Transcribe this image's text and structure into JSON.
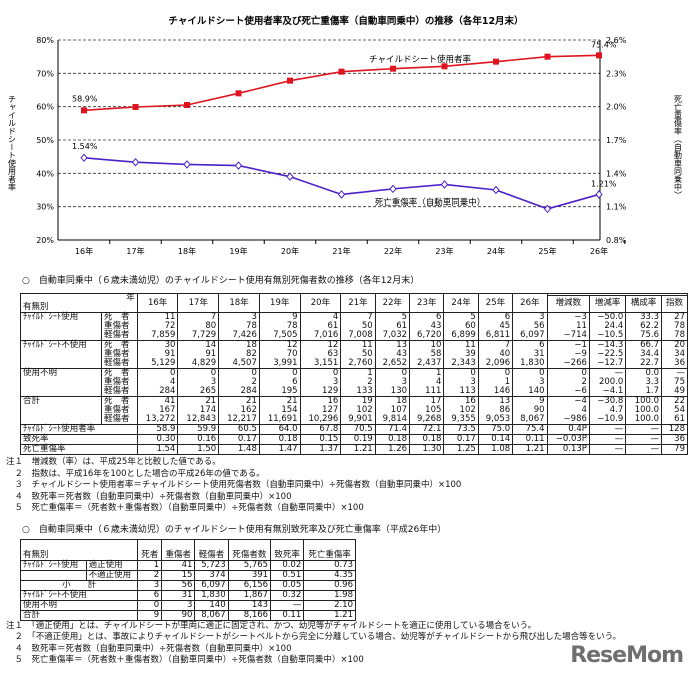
{
  "chart_data": {
    "type": "line",
    "title": "チャイルドシート使用者率及び死亡重傷率（自動車同乗中）の推移（各年12月末）",
    "categories": [
      "16年",
      "17年",
      "18年",
      "19年",
      "20年",
      "21年",
      "22年",
      "23年",
      "24年",
      "25年",
      "26年"
    ],
    "ylabel_left": "チャイルドシート使用者率",
    "ylabel_right": "死亡重傷率（自動車同乗中）",
    "ylim_left": [
      20,
      80
    ],
    "yticks_left": [
      "20%",
      "30%",
      "40%",
      "50%",
      "60%",
      "70%",
      "80%"
    ],
    "ylim_right": [
      0.8,
      2.6
    ],
    "yticks_right": [
      "0.8%",
      "1.1%",
      "1.4%",
      "1.7%",
      "2.0%",
      "2.3%",
      "2.6%"
    ],
    "grid": "horizontal dashed",
    "series": [
      {
        "name": "チャイルドシート使用者率",
        "axis": "left",
        "color": "#e0141e",
        "marker": "square",
        "values": [
          58.9,
          59.9,
          60.5,
          64.0,
          67.8,
          70.5,
          71.4,
          72.1,
          73.5,
          75.0,
          75.4
        ],
        "labels": [
          "58.9%",
          "75.4%"
        ]
      },
      {
        "name": "死亡重傷率（自動車同乗中）",
        "axis": "right",
        "color": "#4a22c8",
        "marker": "diamond",
        "values": [
          1.54,
          1.5,
          1.48,
          1.47,
          1.37,
          1.21,
          1.26,
          1.3,
          1.25,
          1.08,
          1.21
        ],
        "labels": [
          "1.54%",
          "1.21%"
        ]
      }
    ]
  },
  "table1": {
    "title": "○　自動車同乗中（６歳未満幼児）のチャイルドシート使用有無別死傷者数の推移（各年12月末）",
    "corner_top": "年",
    "corner_bottom": "有無別",
    "years": [
      "16年",
      "17年",
      "18年",
      "19年",
      "20年",
      "21年",
      "22年",
      "23年",
      "24年",
      "25年",
      "26年"
    ],
    "extra_headers": [
      "増減数",
      "増減率",
      "構成率",
      "指数"
    ],
    "groups": [
      {
        "label": "ﾁｬｲﾙﾄﾞｼｰﾄ使用",
        "rows": [
          {
            "sub": "死　者",
            "v": [
              "11",
              "7",
              "3",
              "9",
              "4",
              "7",
              "5",
              "6",
              "5",
              "6",
              "3",
              "−3",
              "−50.0",
              "33.3",
              "27"
            ]
          },
          {
            "sub": "重傷者",
            "v": [
              "72",
              "80",
              "78",
              "78",
              "61",
              "50",
              "61",
              "43",
              "60",
              "45",
              "56",
              "11",
              "24.4",
              "62.2",
              "78"
            ]
          },
          {
            "sub": "軽傷者",
            "v": [
              "7,859",
              "7,729",
              "7,426",
              "7,505",
              "7,016",
              "7,008",
              "7,032",
              "6,720",
              "6,899",
              "6,811",
              "6,097",
              "−714",
              "−10.5",
              "75.6",
              "78"
            ]
          }
        ]
      },
      {
        "label": "ﾁｬｲﾙﾄﾞｼｰﾄ不使用",
        "rows": [
          {
            "sub": "死　者",
            "v": [
              "30",
              "14",
              "18",
              "12",
              "12",
              "11",
              "13",
              "10",
              "11",
              "7",
              "6",
              "−1",
              "−14.3",
              "66.7",
              "20"
            ]
          },
          {
            "sub": "重傷者",
            "v": [
              "91",
              "91",
              "82",
              "70",
              "63",
              "50",
              "43",
              "58",
              "39",
              "40",
              "31",
              "−9",
              "−22.5",
              "34.4",
              "34"
            ]
          },
          {
            "sub": "軽傷者",
            "v": [
              "5,129",
              "4,829",
              "4,507",
              "3,991",
              "3,151",
              "2,760",
              "2,652",
              "2,437",
              "2,343",
              "2,096",
              "1,830",
              "−266",
              "−12.7",
              "22.7",
              "36"
            ]
          }
        ]
      },
      {
        "label": "使用不明",
        "rows": [
          {
            "sub": "死　者",
            "v": [
              "0",
              "0",
              "0",
              "0",
              "0",
              "1",
              "0",
              "1",
              "0",
              "0",
              "0",
              "0",
              "—",
              "0.0",
              "—"
            ]
          },
          {
            "sub": "重傷者",
            "v": [
              "4",
              "3",
              "2",
              "6",
              "3",
              "2",
              "3",
              "4",
              "3",
              "1",
              "3",
              "2",
              "200.0",
              "3.3",
              "75"
            ]
          },
          {
            "sub": "軽傷者",
            "v": [
              "284",
              "265",
              "284",
              "195",
              "129",
              "133",
              "130",
              "111",
              "113",
              "146",
              "140",
              "−6",
              "−4.1",
              "1.7",
              "49"
            ]
          }
        ]
      },
      {
        "label": "合計",
        "rows": [
          {
            "sub": "死　者",
            "v": [
              "41",
              "21",
              "21",
              "21",
              "16",
              "19",
              "18",
              "17",
              "16",
              "13",
              "9",
              "−4",
              "−30.8",
              "100.0",
              "22"
            ]
          },
          {
            "sub": "重傷者",
            "v": [
              "167",
              "174",
              "162",
              "154",
              "127",
              "102",
              "107",
              "105",
              "102",
              "86",
              "90",
              "4",
              "4.7",
              "100.0",
              "54"
            ]
          },
          {
            "sub": "軽傷者",
            "v": [
              "13,272",
              "12,843",
              "12,217",
              "11,691",
              "10,296",
              "9,901",
              "9,814",
              "9,268",
              "9,355",
              "9,053",
              "8,067",
              "−986",
              "−10.9",
              "100.0",
              "61"
            ]
          }
        ]
      }
    ],
    "summary": [
      {
        "label": "ﾁｬｲﾙﾄﾞｼｰﾄ使用者率",
        "v": [
          "58.9",
          "59.9",
          "60.5",
          "64.0",
          "67.8",
          "70.5",
          "71.4",
          "72.1",
          "73.5",
          "75.0",
          "75.4",
          "0.4P",
          "—",
          "—",
          "128"
        ]
      },
      {
        "label": "致死率",
        "v": [
          "0.30",
          "0.16",
          "0.17",
          "0.18",
          "0.15",
          "0.19",
          "0.18",
          "0.18",
          "0.17",
          "0.14",
          "0.11",
          "−0.03P",
          "—",
          "—",
          "36"
        ]
      },
      {
        "label": "死亡重傷率",
        "v": [
          "1.54",
          "1.50",
          "1.48",
          "1.47",
          "1.37",
          "1.21",
          "1.26",
          "1.30",
          "1.25",
          "1.08",
          "1.21",
          "0.13P",
          "—",
          "—",
          "79"
        ]
      }
    ],
    "notes": [
      "注１　増減数（率）は、平成25年と比較した値である。",
      "　２　指数は、平成16年を100とした場合の平成26年の値である。",
      "　３　チャイルドシート使用者率＝チャイルドシート使用死傷者数（自動車同乗中）÷死傷者数（自動車同乗中）×100",
      "　４　致死率＝死者数（自動車同乗中）÷死傷者数（自動車同乗中）×100",
      "　５　死亡重傷率＝（死者数＋重傷者数）（自動車同乗中）÷死傷者数（自動車同乗中）×100"
    ]
  },
  "table2": {
    "title": "○　自動車同乗中（６歳未満幼児）のチャイルドシート使用有無別致死率及び死亡重傷率（平成26年中）",
    "corner": "有無別",
    "headers": [
      "死者",
      "重傷者",
      "軽傷者",
      "死傷者数",
      "致死率",
      "死亡重傷率"
    ],
    "rows": [
      {
        "label": "ﾁｬｲﾙﾄﾞｼｰﾄ使用",
        "sub": "適正使用",
        "v": [
          "1",
          "41",
          "5,723",
          "5,765",
          "0.02",
          "0.73"
        ]
      },
      {
        "label": "",
        "sub": "不適正使用",
        "v": [
          "2",
          "15",
          "374",
          "391",
          "0.51",
          "4.35"
        ]
      },
      {
        "label": "小　　計",
        "sub": "",
        "v": [
          "3",
          "56",
          "6,097",
          "6,156",
          "0.05",
          "0.96"
        ]
      },
      {
        "label": "ﾁｬｲﾙﾄﾞｼｰﾄ不使用",
        "sub": "",
        "v": [
          "6",
          "31",
          "1,830",
          "1,867",
          "0.32",
          "1.98"
        ]
      },
      {
        "label": "使用不明",
        "sub": "",
        "v": [
          "0",
          "3",
          "140",
          "143",
          "—",
          "2.10"
        ]
      },
      {
        "label": "合計",
        "sub": "",
        "v": [
          "9",
          "90",
          "8,067",
          "8,166",
          "0.11",
          "1.21"
        ]
      }
    ],
    "notes": [
      "注１　「適正使用」とは、チャイルドシートが車両に適正に固定され、かつ、幼児等がチャイルドシートを適正に使用している場合をいう。",
      "　２　「不適正使用」とは、事故によりチャイルドシートがシートベルトから完全に分離している場合、幼児等がチャイルドシートから飛び出した場合等をいう。",
      "　４　致死率＝死者数（自動車同乗中）÷死傷者数（自動車同乗中）×100",
      "　５　死亡重傷率＝（死者数＋重傷者数）（自動車同乗中）÷死傷者数（自動車同乗中）×100"
    ]
  },
  "watermark": "ReseMom"
}
